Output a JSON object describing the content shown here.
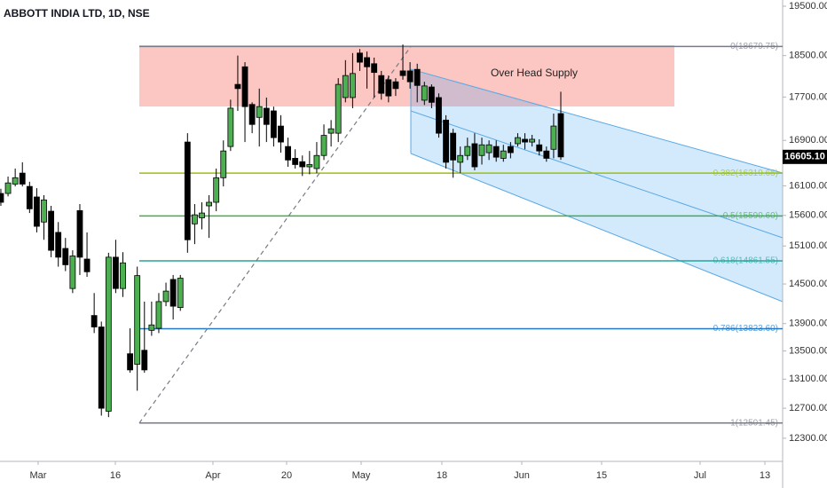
{
  "chart_data": {
    "type": "candlestick",
    "title": "ABBOTT INDIA LTD, 1D, NSE",
    "annotation": "Over Head Supply",
    "up_color": "#4caf50",
    "down_color": "#000000",
    "log_scale": true,
    "grid": false,
    "open": [
      15970,
      15970,
      16130,
      16320,
      16090,
      15910,
      15490,
      15670,
      15320,
      15060,
      14430,
      15680,
      14890,
      14020,
      13850,
      12660,
      14920,
      14430,
      13460,
      13310,
      13510,
      13800,
      13830,
      14230,
      14570,
      14140,
      16870,
      15460,
      15560,
      15760,
      15820,
      16240,
      16790,
      17940,
      18280,
      17560,
      17320,
      17490,
      17440,
      17160,
      16790,
      16580,
      16520,
      16430,
      16400,
      16630,
      17030,
      17030,
      17690,
      17690,
      18550,
      18460,
      18340,
      18110,
      18030,
      17990,
      18200,
      18200,
      18230,
      17640,
      17890,
      17690,
      17270,
      17030,
      16510,
      16630,
      16840,
      16630,
      16680,
      16790,
      16580,
      16790,
      16840,
      16920,
      16870,
      16820,
      16710,
      16740,
      17390
    ],
    "high": [
      16050,
      16260,
      16400,
      16510,
      16170,
      16060,
      15940,
      15760,
      15490,
      15230,
      15030,
      15790,
      15320,
      14360,
      13930,
      14990,
      15200,
      15000,
      13830,
      14770,
      14230,
      14230,
      14360,
      14520,
      14640,
      14640,
      17030,
      15790,
      15820,
      15940,
      16400,
      16900,
      17650,
      18500,
      18370,
      17600,
      17860,
      17690,
      17520,
      17360,
      16950,
      16740,
      16630,
      16710,
      16870,
      17190,
      17270,
      18060,
      18410,
      18550,
      18630,
      18580,
      18460,
      18200,
      18110,
      18060,
      18720,
      18370,
      18340,
      17990,
      17940,
      17770,
      17360,
      17110,
      16790,
      16950,
      17030,
      16950,
      16900,
      16900,
      16820,
      16870,
      17030,
      17030,
      17000,
      16920,
      16790,
      17390,
      17800
    ],
    "low": [
      15760,
      15920,
      16090,
      16090,
      15640,
      15320,
      15200,
      14920,
      14770,
      14700,
      14360,
      14640,
      14610,
      13760,
      12600,
      12580,
      14360,
      14300,
      13190,
      12940,
      13190,
      13720,
      13760,
      14160,
      13960,
      14090,
      14990,
      15130,
      15370,
      15230,
      15670,
      16090,
      16710,
      17440,
      16870,
      17030,
      16790,
      16870,
      16790,
      16680,
      16430,
      16400,
      16270,
      16300,
      16320,
      16550,
      16790,
      16870,
      17600,
      17490,
      18200,
      17860,
      17690,
      17650,
      17600,
      17720,
      18030,
      17860,
      17600,
      17550,
      17490,
      16950,
      16400,
      16240,
      16320,
      16550,
      16370,
      16470,
      16550,
      16520,
      16520,
      16580,
      16790,
      16740,
      16790,
      16630,
      16520,
      16580,
      16553
    ],
    "close": [
      15820,
      16150,
      16240,
      16130,
      15710,
      15420,
      15860,
      15030,
      14920,
      14800,
      14940,
      14920,
      14690,
      13850,
      12700,
      14920,
      14430,
      14830,
      13230,
      14630,
      13230,
      13880,
      14230,
      14390,
      14160,
      14590,
      15200,
      15610,
      15640,
      15820,
      16240,
      16710,
      17490,
      17860,
      17520,
      17190,
      17520,
      17190,
      16950,
      16870,
      16550,
      16470,
      16430,
      16470,
      16630,
      16990,
      17110,
      17940,
      18110,
      18150,
      18370,
      18280,
      18170,
      17770,
      17720,
      17860,
      18110,
      17990,
      17920,
      17910,
      17600,
      17030,
      16510,
      16550,
      16630,
      16790,
      16430,
      16820,
      16820,
      16600,
      16710,
      16680,
      16950,
      16870,
      16920,
      16710,
      16580,
      17160,
      16605.1
    ],
    "current_price": {
      "value": 16605.1,
      "label": "16605.10"
    },
    "xlim": [
      -0.12,
      108.9
    ],
    "xticks": [
      {
        "value": 5.19,
        "label": "Mar"
      },
      {
        "value": 15.95,
        "label": "16"
      },
      {
        "value": 29.54,
        "label": "Apr"
      },
      {
        "value": 39.8,
        "label": "20"
      },
      {
        "value": 50.19,
        "label": "May"
      },
      {
        "value": 61.43,
        "label": "18"
      },
      {
        "value": 72.56,
        "label": "Jun"
      },
      {
        "value": 83.68,
        "label": "15"
      },
      {
        "value": 97.4,
        "label": "Jul"
      },
      {
        "value": 106.43,
        "label": "13"
      }
    ],
    "ylim": [
      12000,
      19630
    ],
    "yticks": [
      {
        "value": 19500,
        "label": "19500.00"
      },
      {
        "value": 18500,
        "label": "18500.00"
      },
      {
        "value": 17700,
        "label": "17700.00"
      },
      {
        "value": 16900,
        "label": "16900.00"
      },
      {
        "value": 16100,
        "label": "16100.00"
      },
      {
        "value": 15600,
        "label": "15600.00"
      },
      {
        "value": 15100,
        "label": "15100.00"
      },
      {
        "value": 14500,
        "label": "14500.00"
      },
      {
        "value": 13900,
        "label": "13900.00"
      },
      {
        "value": 13500,
        "label": "13500.00"
      },
      {
        "value": 13100,
        "label": "13100.00"
      },
      {
        "value": 12700,
        "label": "12700.00"
      },
      {
        "value": 12300,
        "label": "12300.00"
      }
    ],
    "fib_levels": [
      {
        "price": 18679.75,
        "label": "0(18679.75)",
        "color": "#787b86"
      },
      {
        "price": 16319.65,
        "label": "0.382(16319.65)",
        "color": "#9bc10a"
      },
      {
        "price": 15590.6,
        "label": "0.5(15590.60)",
        "color": "#3cb043"
      },
      {
        "price": 14861.55,
        "label": "0.618(14861.55)",
        "color": "#26a69a"
      },
      {
        "price": 13823.6,
        "label": "0.786(13823.60)",
        "color": "#2178c4"
      },
      {
        "price": 12501.45,
        "label": "1(12501.45)",
        "color": "#787b86"
      }
    ]
  }
}
